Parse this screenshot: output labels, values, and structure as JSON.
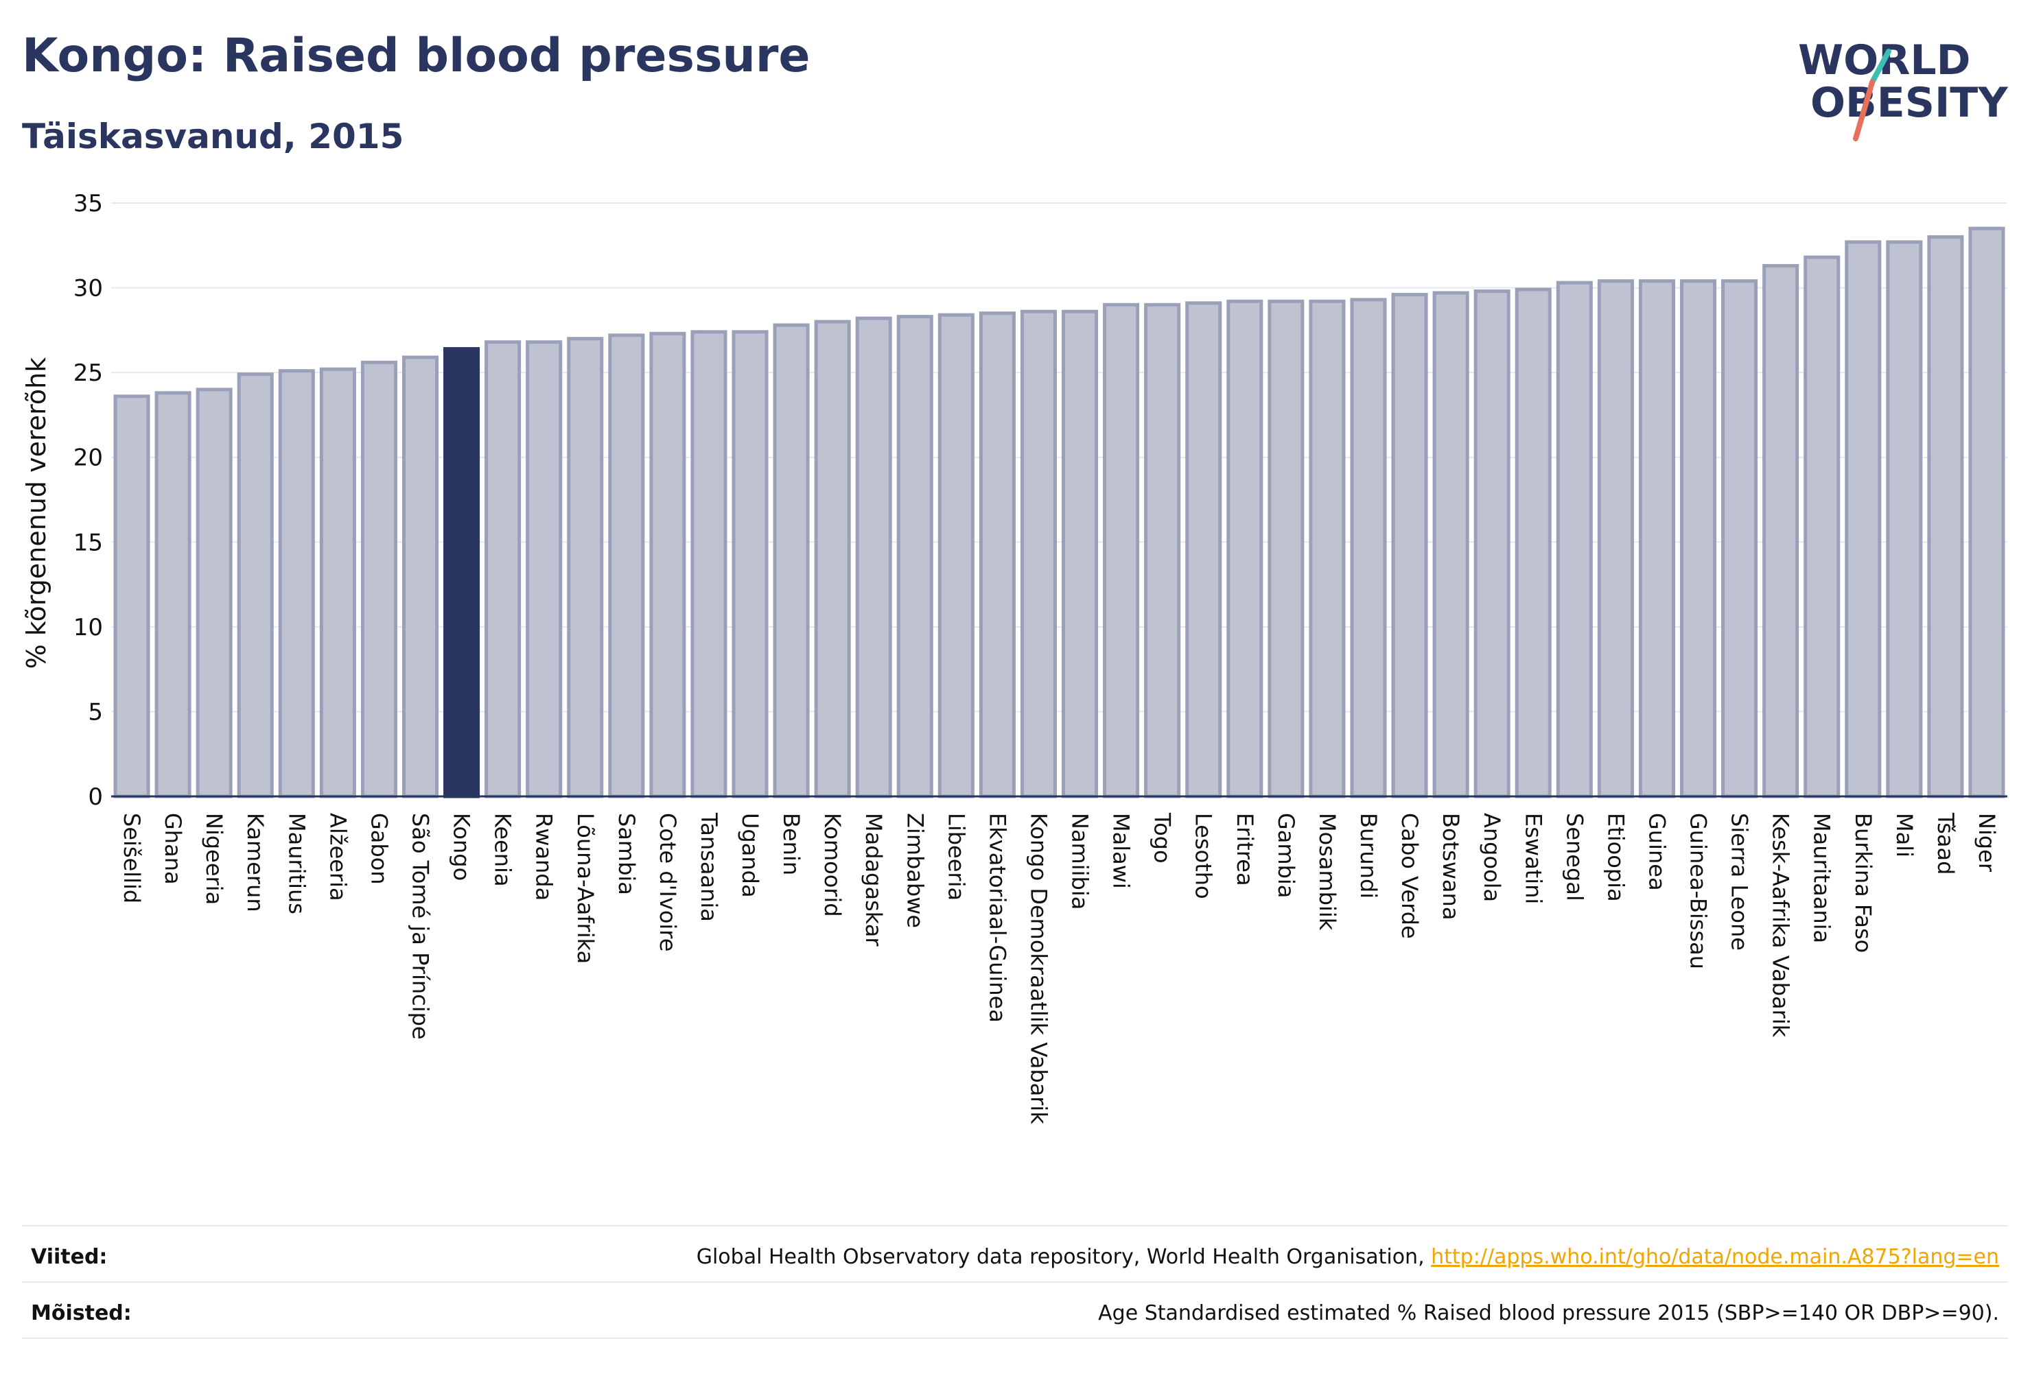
{
  "header": {
    "title": "Kongo: Raised blood pressure",
    "subtitle": "Täiskasvanud, 2015"
  },
  "logo": {
    "line1": "WORLD",
    "line2": "OBESITY"
  },
  "chart_data": {
    "type": "bar",
    "ylabel": "% kõrgenenud vererõhk",
    "ylim": [
      0,
      35
    ],
    "yticks": [
      0,
      5,
      10,
      15,
      20,
      25,
      30,
      35
    ],
    "grid": true,
    "highlight": "Kongo",
    "colors": {
      "bar": "#bfc3d1",
      "bar_border": "#9aa0b8",
      "highlight": "#2a3560"
    },
    "categories": [
      "Seišellid",
      "Ghana",
      "Nigeeria",
      "Kamerun",
      "Mauritius",
      "Alžeeria",
      "Gabon",
      "São Tomé ja Príncipe",
      "Kongo",
      "Keenia",
      "Rwanda",
      "Lõuna-Aafrika",
      "Sambia",
      "Cote d'Ivoire",
      "Tansaania",
      "Uganda",
      "Benin",
      "Komoorid",
      "Madagaskar",
      "Zimbabwe",
      "Libeeria",
      "Ekvatoriaal-Guinea",
      "Kongo Demokraatlik Vabarik",
      "Namiibia",
      "Malawi",
      "Togo",
      "Lesotho",
      "Eritrea",
      "Gambia",
      "Mosambiik",
      "Burundi",
      "Cabo Verde",
      "Botswana",
      "Angoola",
      "Eswatini",
      "Senegal",
      "Etioopia",
      "Guinea",
      "Guinea-Bissau",
      "Sierra Leone",
      "Kesk-Aafrika Vabarik",
      "Mauritaania",
      "Burkina Faso",
      "Mali",
      "Tšaad",
      "Niger"
    ],
    "values": [
      23.6,
      23.8,
      24.0,
      24.9,
      25.1,
      25.2,
      25.6,
      25.9,
      26.4,
      26.8,
      26.8,
      27.0,
      27.2,
      27.3,
      27.4,
      27.4,
      27.8,
      28.0,
      28.2,
      28.3,
      28.4,
      28.5,
      28.6,
      28.6,
      29.0,
      29.0,
      29.1,
      29.2,
      29.2,
      29.2,
      29.3,
      29.6,
      29.7,
      29.8,
      29.9,
      30.3,
      30.4,
      30.4,
      30.4,
      30.4,
      31.3,
      31.8,
      32.7,
      32.7,
      33.0,
      33.5
    ]
  },
  "footer": {
    "refs_label": "Viited:",
    "refs_text": "Global Health Observatory data repository, World Health Organisation, ",
    "refs_link": "http://apps.who.int/gho/data/node.main.A875?lang=en",
    "defs_label": "Mõisted:",
    "defs_text": "Age Standardised estimated % Raised blood pressure 2015 (SBP>=140 OR DBP>=90)."
  }
}
